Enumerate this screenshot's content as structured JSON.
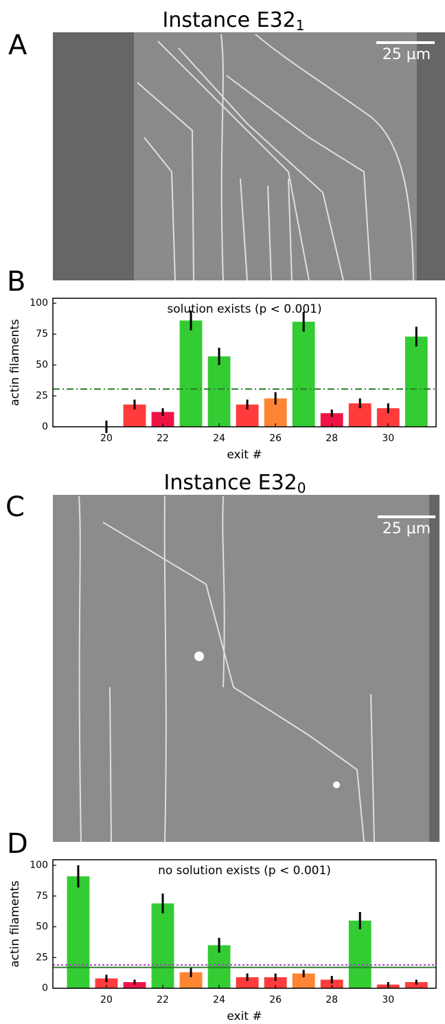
{
  "images": [
    {
      "label": "A",
      "title": "Instance E32",
      "title_subscript": "1",
      "scale_bar_label": "25 µm"
    },
    {
      "label": "C",
      "title": "Instance E32",
      "title_subscript": "0",
      "scale_bar_label": "25 µm"
    }
  ],
  "chart_data": [
    {
      "type": "bar",
      "panel_label": "B",
      "annotation": "solution exists (p < 0.001)",
      "x_label": "exit #",
      "y_label": "actin filaments",
      "x": [
        20,
        21,
        22,
        23,
        24,
        25,
        26,
        27,
        28,
        29,
        30,
        31
      ],
      "values": [
        0,
        18,
        12,
        86,
        57,
        18,
        23,
        85,
        11,
        19,
        15,
        73
      ],
      "errors": [
        5,
        4,
        3,
        8,
        7,
        4,
        5,
        8,
        3,
        4,
        4,
        8
      ],
      "colors": [
        "#ff3b3b",
        "#ff3b3b",
        "#f01446",
        "#33cc33",
        "#33cc33",
        "#ff3b3b",
        "#ff8433",
        "#33cc33",
        "#f01446",
        "#ff3b3b",
        "#ff3b3b",
        "#33cc33"
      ],
      "xlim": [
        18.1,
        31.7
      ],
      "xticks": [
        20,
        22,
        24,
        26,
        28,
        30
      ],
      "ylim": [
        0,
        104
      ],
      "yticks": [
        0,
        25,
        50,
        75,
        100
      ],
      "hlines": [
        {
          "value": 30.5,
          "color": "#2a7d2a",
          "style": "dashdot"
        }
      ]
    },
    {
      "type": "bar",
      "panel_label": "D",
      "annotation": "no solution exists (p < 0.001)",
      "x_label": "exit #",
      "y_label": "actin filaments",
      "x": [
        19,
        20,
        21,
        22,
        23,
        24,
        25,
        26,
        27,
        28,
        29,
        30,
        31
      ],
      "values": [
        91,
        8,
        5,
        69,
        13,
        35,
        9,
        9,
        12,
        7,
        55,
        3,
        5
      ],
      "errors": [
        9,
        3,
        2,
        8,
        4,
        6,
        3,
        3,
        3,
        3,
        7,
        2,
        2
      ],
      "colors": [
        "#33cc33",
        "#ff3b3b",
        "#f01446",
        "#33cc33",
        "#ff8433",
        "#33cc33",
        "#ff3b3b",
        "#ff3b3b",
        "#ff8433",
        "#ff3b3b",
        "#33cc33",
        "#ff3b3b",
        "#ff3b3b"
      ],
      "xlim": [
        18.1,
        31.7
      ],
      "xticks": [
        20,
        22,
        24,
        26,
        28,
        30
      ],
      "ylim": [
        0,
        104.5
      ],
      "yticks": [
        0,
        25,
        50,
        75,
        100
      ],
      "hlines": [
        {
          "value": 17,
          "color": "#2a7d2a",
          "style": "solid"
        },
        {
          "value": 19,
          "color": "#b040d0",
          "style": "dotted"
        }
      ]
    }
  ]
}
